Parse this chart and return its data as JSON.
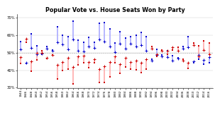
{
  "title": "Popular Vote vs. House Seats Won by Party",
  "years": [
    1944,
    1946,
    1948,
    1950,
    1952,
    1954,
    1956,
    1958,
    1960,
    1962,
    1964,
    1966,
    1968,
    1970,
    1972,
    1974,
    1976,
    1978,
    1980,
    1982,
    1984,
    1986,
    1988,
    1990,
    1992,
    1994,
    1996,
    1998,
    2000,
    2002,
    2004,
    2006,
    2008,
    2010,
    2012,
    2014,
    2016
  ],
  "dem_seats": [
    56.2,
    43.9,
    60.6,
    54.0,
    49.0,
    53.3,
    51.5,
    64.9,
    60.0,
    59.3,
    67.8,
    57.0,
    55.9,
    58.6,
    55.9,
    66.9,
    67.1,
    63.7,
    55.7,
    61.8,
    58.2,
    59.3,
    59.8,
    61.4,
    59.3,
    46.4,
    52.0,
    48.7,
    51.0,
    48.4,
    46.9,
    53.6,
    59.1,
    44.4,
    46.2,
    43.3,
    44.4
  ],
  "dem_vote": [
    52.0,
    44.4,
    52.6,
    49.0,
    49.6,
    52.2,
    51.2,
    56.0,
    54.5,
    52.0,
    57.5,
    51.0,
    50.5,
    53.5,
    52.5,
    57.6,
    56.3,
    53.5,
    50.4,
    55.1,
    52.1,
    54.9,
    53.5,
    54.3,
    50.9,
    45.5,
    48.5,
    47.8,
    47.4,
    45.5,
    46.5,
    52.1,
    53.2,
    44.9,
    48.8,
    45.7,
    47.3
  ],
  "rep_seats": [
    43.7,
    56.1,
    39.4,
    46.0,
    51.0,
    46.7,
    48.5,
    35.1,
    40.0,
    40.7,
    32.2,
    43.0,
    44.1,
    41.4,
    44.1,
    33.1,
    32.9,
    36.3,
    44.3,
    38.2,
    41.8,
    40.7,
    40.2,
    38.6,
    40.7,
    53.6,
    48.0,
    51.3,
    49.0,
    51.6,
    53.1,
    46.4,
    40.9,
    55.6,
    53.8,
    56.7,
    55.6
  ],
  "rep_vote": [
    47.3,
    57.8,
    45.0,
    49.9,
    50.0,
    47.0,
    48.7,
    43.0,
    44.8,
    47.1,
    41.9,
    48.0,
    48.2,
    44.5,
    46.4,
    40.5,
    42.1,
    44.7,
    48.0,
    43.3,
    47.0,
    44.6,
    45.5,
    44.2,
    46.4,
    52.4,
    48.9,
    51.0,
    51.0,
    53.2,
    51.1,
    45.6,
    44.4,
    54.3,
    48.0,
    51.4,
    49.1
  ],
  "ylim": [
    30,
    72
  ],
  "yticks": [
    30,
    40,
    50,
    60,
    70
  ],
  "ytick_labels": [
    "30%",
    "40%",
    "50%",
    "60%",
    "70%"
  ],
  "blue_color": "#0000cc",
  "red_color": "#cc0000",
  "blue_fill": "#aaaaff",
  "red_fill": "#ffaaaa"
}
